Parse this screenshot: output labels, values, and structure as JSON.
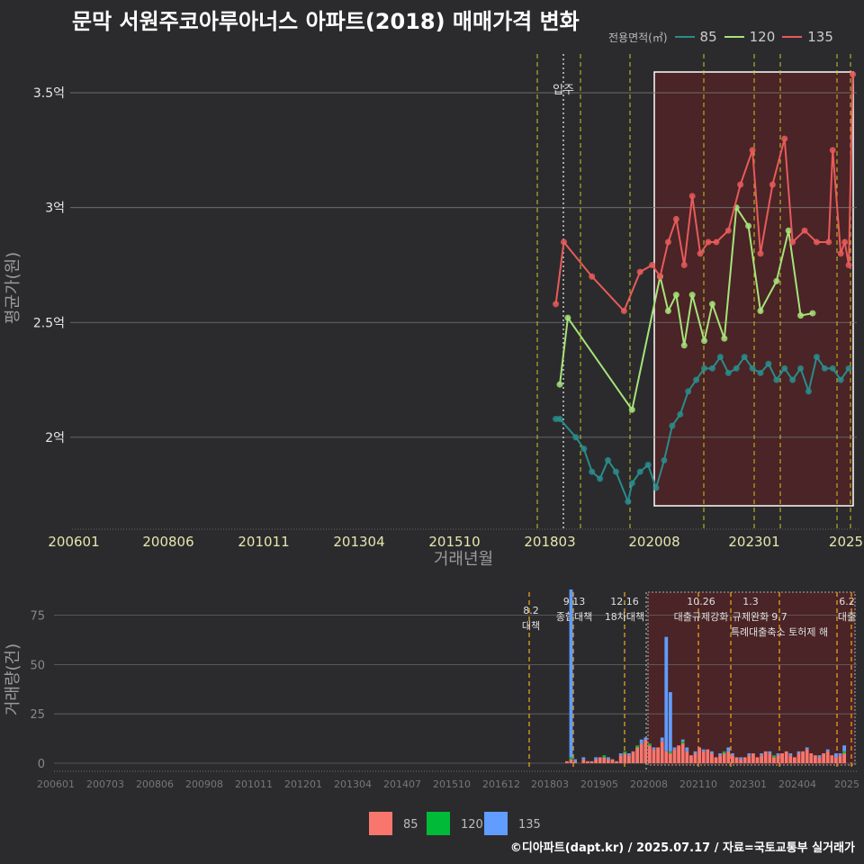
{
  "title": "문막 서원주코아루아너스 아파트(2018) 매매가격 변화",
  "legend_top": {
    "title": "전용면적(㎡)",
    "items": [
      {
        "label": "85",
        "color": "#2a8c8c"
      },
      {
        "label": "120",
        "color": "#a6e37a"
      },
      {
        "label": "135",
        "color": "#e85a5a"
      }
    ]
  },
  "legend_bottom": {
    "items": [
      {
        "label": "85",
        "color": "#f8766d"
      },
      {
        "label": "120",
        "color": "#00ba38"
      },
      {
        "label": "135",
        "color": "#619cff"
      }
    ]
  },
  "credit": "©디아파트(dapt.kr) / 2025.07.17 / 자료=국토교통부 실거래가",
  "chart_data": [
    {
      "type": "line",
      "title": "문막 서원주코아루아너스 아파트(2018) 매매가격 변화",
      "xlabel": "거래년월",
      "ylabel": "평균가(원)",
      "x_tick_labels": [
        "200601",
        "200806",
        "201011",
        "201304",
        "201510",
        "201803",
        "202008",
        "202301",
        "2025"
      ],
      "y_tick_labels": [
        "2억",
        "2.5억",
        "3억",
        "3.5억"
      ],
      "y_ticks": [
        2.0,
        2.5,
        3.0,
        3.5
      ],
      "ylim": [
        1.6,
        3.7
      ],
      "xlim": [
        2006.0,
        2025.6
      ],
      "annotation": "입주",
      "series": [
        {
          "name": "85",
          "x": [
            2018.1,
            2018.2,
            2018.6,
            2018.8,
            2019.0,
            2019.2,
            2019.4,
            2019.6,
            2019.9,
            2020.0,
            2020.2,
            2020.4,
            2020.6,
            2020.8,
            2021.0,
            2021.2,
            2021.4,
            2021.6,
            2021.8,
            2022.0,
            2022.2,
            2022.4,
            2022.6,
            2022.8,
            2023.0,
            2023.2,
            2023.4,
            2023.6,
            2023.8,
            2024.0,
            2024.2,
            2024.4,
            2024.6,
            2024.8,
            2025.0,
            2025.2,
            2025.4
          ],
          "values": [
            2.08,
            2.08,
            2.0,
            1.95,
            1.85,
            1.82,
            1.9,
            1.85,
            1.72,
            1.8,
            1.85,
            1.88,
            1.78,
            1.9,
            2.05,
            2.1,
            2.2,
            2.25,
            2.3,
            2.3,
            2.35,
            2.28,
            2.3,
            2.35,
            2.3,
            2.28,
            2.32,
            2.25,
            2.3,
            2.25,
            2.3,
            2.2,
            2.35,
            2.3,
            2.3,
            2.25,
            2.3
          ]
        },
        {
          "name": "120",
          "x": [
            2018.2,
            2018.4,
            2020.0,
            2020.7,
            2020.9,
            2021.1,
            2021.3,
            2021.5,
            2021.8,
            2022.0,
            2022.3,
            2022.6,
            2022.9,
            2023.2,
            2023.6,
            2023.9,
            2024.2,
            2024.5
          ],
          "values": [
            2.23,
            2.52,
            2.12,
            2.7,
            2.55,
            2.62,
            2.4,
            2.62,
            2.42,
            2.58,
            2.43,
            3.0,
            2.92,
            2.55,
            2.68,
            2.9,
            2.53,
            2.54
          ]
        },
        {
          "name": "135",
          "x": [
            2018.1,
            2018.3,
            2019.0,
            2019.8,
            2020.2,
            2020.5,
            2020.7,
            2020.9,
            2021.1,
            2021.3,
            2021.5,
            2021.7,
            2021.9,
            2022.1,
            2022.4,
            2022.7,
            2023.0,
            2023.2,
            2023.5,
            2023.8,
            2024.0,
            2024.3,
            2024.6,
            2024.9,
            2025.0,
            2025.2,
            2025.3,
            2025.4,
            2025.5
          ],
          "values": [
            2.58,
            2.85,
            2.7,
            2.55,
            2.72,
            2.75,
            2.7,
            2.85,
            2.95,
            2.75,
            3.05,
            2.8,
            2.85,
            2.85,
            2.9,
            3.1,
            3.25,
            2.8,
            3.1,
            3.3,
            2.85,
            2.9,
            2.85,
            2.85,
            3.25,
            2.8,
            2.85,
            2.75,
            3.58
          ]
        }
      ]
    },
    {
      "type": "bar",
      "xlabel": "",
      "ylabel": "거래량(건)",
      "x_tick_labels": [
        "200601",
        "200703",
        "200806",
        "200908",
        "201011",
        "201201",
        "201304",
        "201407",
        "201510",
        "201612",
        "201803",
        "201905",
        "202008",
        "202110",
        "202301",
        "202404",
        "2025"
      ],
      "y_tick_labels": [
        "0",
        "25",
        "50",
        "75"
      ],
      "ylim": [
        0,
        88
      ],
      "annotations": [
        {
          "date": "8.2",
          "text": "대책"
        },
        {
          "date": "9.13",
          "text": "종합대책"
        },
        {
          "date": "12.16",
          "text": "18차대책"
        },
        {
          "date": "10.26",
          "text": "대출규제강화"
        },
        {
          "date": "1.3",
          "text": "규제완화"
        },
        {
          "date": "9.7",
          "text": "특례대출축소 토허제 해"
        },
        {
          "date": "6.2",
          "text": "대출"
        }
      ],
      "series": [
        {
          "name": "85",
          "values": [
            1,
            2,
            1,
            0,
            2,
            1,
            1,
            2,
            3,
            3,
            2,
            2,
            1,
            4,
            5,
            4,
            6,
            8,
            10,
            12,
            9,
            7,
            8,
            11,
            6,
            5,
            7,
            9,
            10,
            6,
            4,
            5,
            8,
            6,
            7,
            5,
            3,
            4,
            5,
            6,
            4,
            3,
            2,
            3,
            4,
            5,
            3,
            4,
            6,
            5,
            3,
            4,
            5,
            6,
            4,
            3,
            5,
            6,
            7,
            5,
            4,
            3,
            5,
            6,
            4,
            3,
            4,
            5
          ]
        },
        {
          "name": "120",
          "values": [
            0,
            1,
            0,
            0,
            0,
            0,
            0,
            0,
            0,
            1,
            0,
            0,
            0,
            0,
            1,
            0,
            0,
            1,
            0,
            0,
            1,
            0,
            0,
            0,
            0,
            1,
            0,
            0,
            1,
            0,
            0,
            0,
            0,
            0,
            0,
            0,
            0,
            0,
            1,
            0,
            0,
            0,
            0,
            0,
            0,
            0,
            0,
            0,
            0,
            0,
            1,
            0,
            0,
            0,
            0,
            0,
            0,
            0,
            0,
            0,
            0,
            0,
            0,
            0,
            0,
            0,
            0,
            1
          ]
        },
        {
          "name": "135",
          "values": [
            0,
            85,
            1,
            0,
            1,
            0,
            0,
            1,
            0,
            0,
            1,
            0,
            0,
            1,
            0,
            1,
            0,
            0,
            2,
            1,
            0,
            1,
            0,
            2,
            58,
            30,
            1,
            0,
            1,
            2,
            0,
            1,
            0,
            1,
            0,
            1,
            0,
            1,
            0,
            2,
            1,
            0,
            1,
            0,
            1,
            0,
            0,
            1,
            0,
            1,
            0,
            1,
            0,
            0,
            1,
            0,
            1,
            0,
            1,
            0,
            0,
            1,
            0,
            1,
            0,
            2,
            1,
            3
          ]
        }
      ]
    }
  ]
}
